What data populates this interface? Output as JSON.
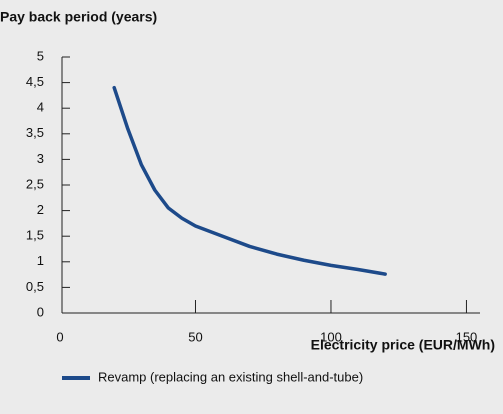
{
  "chart_data": {
    "type": "line",
    "title": "Pay back period (years)",
    "x_label": "Electricity price (EUR/MWh)",
    "x": [
      20,
      25,
      30,
      35,
      40,
      45,
      50,
      55,
      60,
      70,
      80,
      90,
      100,
      110,
      120
    ],
    "series": [
      {
        "name": "Revamp (replacing an existing shell-and-tube)",
        "color": "#1d4a8a",
        "values": [
          4.4,
          3.6,
          2.9,
          2.4,
          2.05,
          1.85,
          1.7,
          1.6,
          1.5,
          1.3,
          1.15,
          1.03,
          0.93,
          0.85,
          0.76
        ]
      }
    ],
    "xlim": [
      0,
      155
    ],
    "xticks": [
      0,
      50,
      100,
      150
    ],
    "ylim": [
      0,
      5
    ],
    "yticks": [
      0,
      {
        "value": 0.5,
        "label": "0,5"
      },
      1,
      {
        "value": 1.5,
        "label": "1,5"
      },
      2,
      {
        "value": 2.5,
        "label": "2,5"
      },
      3,
      {
        "value": 3.5,
        "label": "3,5"
      },
      4,
      {
        "value": 4.5,
        "label": "4,5"
      },
      5
    ],
    "grid": false
  }
}
